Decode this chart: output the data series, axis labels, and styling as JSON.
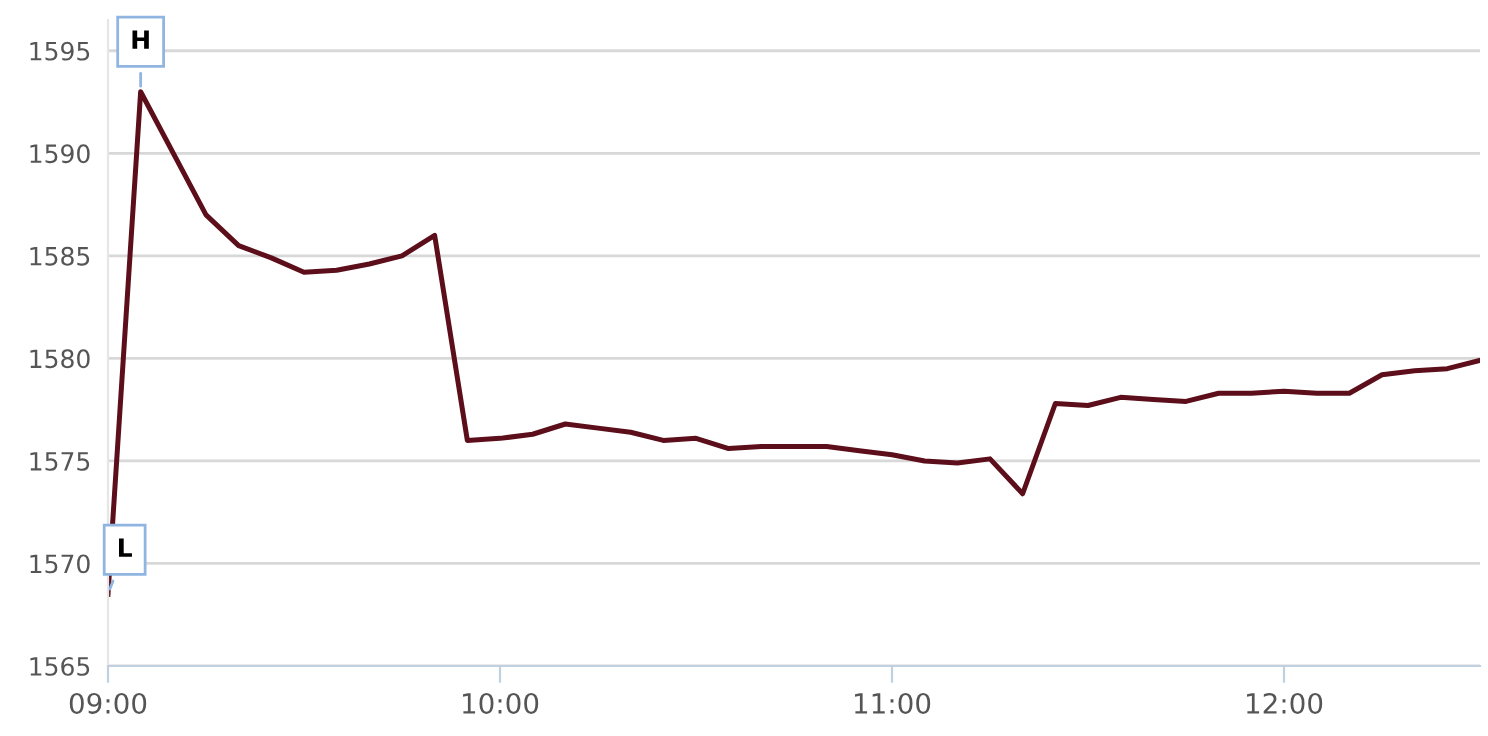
{
  "chart_data": {
    "type": "line",
    "x": [
      9,
      9.0833,
      9.25,
      9.3333,
      9.4167,
      9.5,
      9.5833,
      9.6667,
      9.75,
      9.8333,
      9.9167,
      10,
      10.0833,
      10.1667,
      10.25,
      10.3333,
      10.4167,
      10.5,
      10.5833,
      10.6667,
      10.75,
      10.8333,
      10.9167,
      11,
      11.0833,
      11.1667,
      11.25,
      11.3333,
      11.4167,
      11.5,
      11.5833,
      11.6667,
      11.75,
      11.8333,
      11.9167,
      12,
      12.0833,
      12.1667,
      12.25,
      12.3333,
      12.4167,
      12.5
    ],
    "series": [
      {
        "color": "#5c0f1a",
        "values": [
          1568.5,
          1593.0,
          1587.0,
          1585.5,
          1584.9,
          1584.2,
          1584.3,
          1584.6,
          1585.0,
          1586.0,
          1576.0,
          1576.1,
          1576.3,
          1576.8,
          1576.6,
          1576.4,
          1576.0,
          1576.1,
          1575.6,
          1575.7,
          1575.7,
          1575.7,
          1575.5,
          1575.3,
          1575.0,
          1574.9,
          1575.1,
          1573.4,
          1577.8,
          1577.7,
          1578.1,
          1578.0,
          1577.9,
          1578.3,
          1578.3,
          1578.4,
          1578.3,
          1578.3,
          1579.2,
          1579.4,
          1579.5,
          1579.9
        ]
      }
    ],
    "xlim": [
      9,
      12.5
    ],
    "ylim": [
      1565,
      1596.5
    ],
    "xticks": [
      {
        "value": 9,
        "label": "09:00"
      },
      {
        "value": 10,
        "label": "10:00"
      },
      {
        "value": 11,
        "label": "11:00"
      },
      {
        "value": 12,
        "label": "12:00"
      }
    ],
    "yticks": [
      1565,
      1570,
      1575,
      1580,
      1585,
      1590,
      1595
    ],
    "grid": "y",
    "legend": false,
    "marker": "none",
    "line_style": "solid",
    "annotations": [
      {
        "text": "H",
        "x": 9.0833,
        "y": 1593.0
      },
      {
        "text": "L",
        "x": 9,
        "y": 1568.5
      }
    ]
  }
}
